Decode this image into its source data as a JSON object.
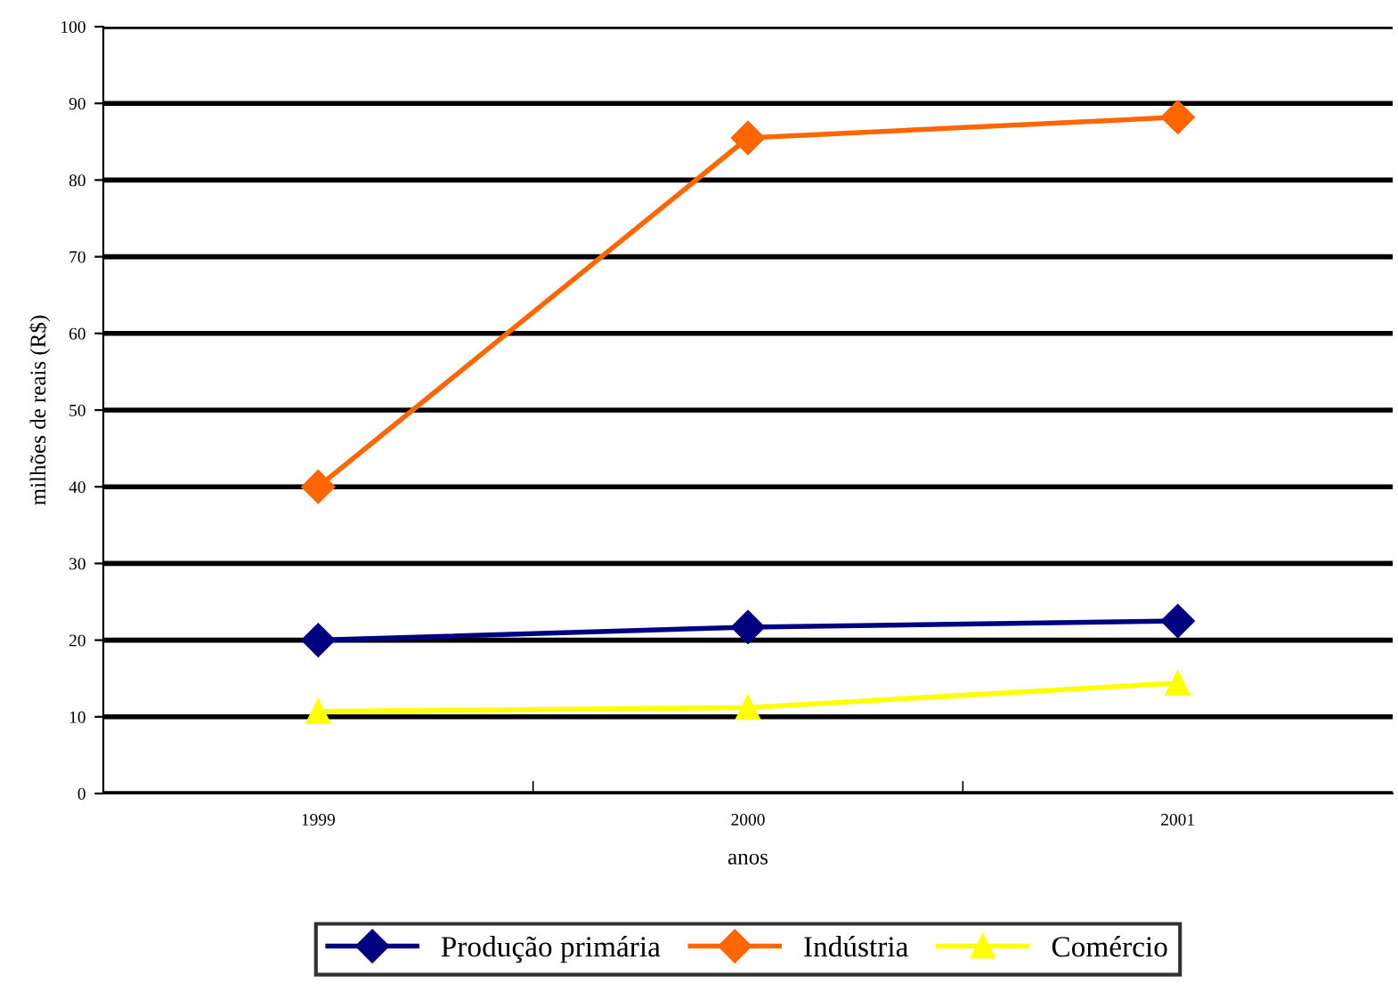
{
  "chart_data": {
    "type": "line",
    "xlabel": "anos",
    "ylabel": "milhões de reais (R$)",
    "categories": [
      "1999",
      "2000",
      "2001"
    ],
    "series": [
      {
        "name": "Produção primária",
        "color": "#000080",
        "values": [
          20,
          21.7,
          22.5
        ],
        "marker": "diamond"
      },
      {
        "name": "Indústria",
        "color": "#ff6600",
        "values": [
          40,
          85.5,
          88.2
        ],
        "marker": "diamond"
      },
      {
        "name": "Comércio",
        "color": "#ffff00",
        "values": [
          10.7,
          11.2,
          14.4
        ],
        "marker": "triangle"
      }
    ],
    "ylim": [
      0,
      100
    ],
    "yticks": [
      0,
      10,
      20,
      30,
      40,
      50,
      60,
      70,
      80,
      90,
      100
    ],
    "grid": "y",
    "legend": "bottom",
    "line_style": "solid"
  }
}
